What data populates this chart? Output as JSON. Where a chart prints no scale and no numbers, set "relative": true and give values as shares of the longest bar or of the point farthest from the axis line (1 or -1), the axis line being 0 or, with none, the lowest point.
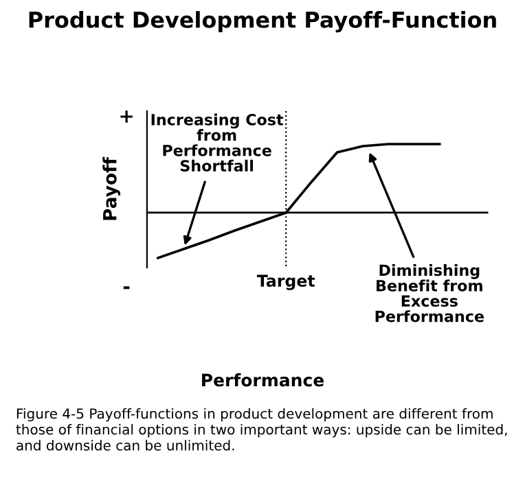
{
  "chart_data": {
    "type": "line",
    "title": "Product Development Payoff-Function",
    "ylabel": "Payoff",
    "relative": true,
    "categories": [
      null,
      null,
      null,
      null,
      null,
      null,
      null,
      null,
      null,
      null,
      null,
      null
    ],
    "series": [
      {
        "color": "#000000",
        "values": [
          -0.66,
          -0.53,
          -0.4,
          -0.26,
          -0.13,
          0,
          0.45,
          0.88,
          0.97,
          1.0,
          1.0,
          1.0
        ]
      }
    ],
    "annotations": [
      "+",
      "-",
      "Target",
      "Performance",
      "Increasing Cost\nfrom\nPerformance\nShortfall",
      "Diminishing\nBenefit from\nExcess\nPerformance",
      "Figure 4-5 Payoff-functions in product development are different from those of financial options in two important ways: upside can be limited, and downside can be unlimited."
    ],
    "grid": false,
    "legend": false,
    "marker": "none",
    "line_style": "solid"
  }
}
